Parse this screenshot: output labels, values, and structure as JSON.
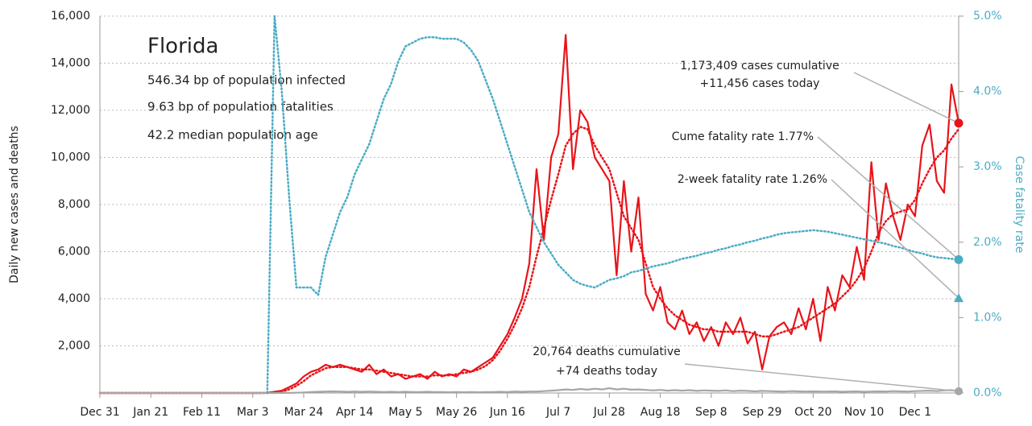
{
  "chart_data": {
    "type": "line",
    "title": "Florida",
    "info": [
      "546.34 bp of population infected",
      "9.63 bp of population fatalities",
      "42.2 median population age"
    ],
    "ylabel": "Daily new cases and deaths",
    "y2label": "Case fatality rate",
    "ylim": [
      0,
      16000
    ],
    "yticks": [
      {
        "value": 2000,
        "label": "2,000"
      },
      {
        "value": 4000,
        "label": "4,000"
      },
      {
        "value": 6000,
        "label": "6,000"
      },
      {
        "value": 8000,
        "label": "8,000"
      },
      {
        "value": 10000,
        "label": "10,000"
      },
      {
        "value": 12000,
        "label": "12,000"
      },
      {
        "value": 14000,
        "label": "14,000"
      },
      {
        "value": 16000,
        "label": "16,000"
      }
    ],
    "y2lim": [
      0,
      5
    ],
    "y2ticks": [
      {
        "value": 0,
        "label": "0.0%"
      },
      {
        "value": 1,
        "label": "1.0%"
      },
      {
        "value": 2,
        "label": "2.0%"
      },
      {
        "value": 3,
        "label": "3.0%"
      },
      {
        "value": 4,
        "label": "4.0%"
      },
      {
        "value": 5,
        "label": "5.0%"
      }
    ],
    "grid": true,
    "categories": [
      "Dec 31",
      null,
      null,
      null,
      null,
      null,
      null,
      "Jan 21",
      null,
      null,
      null,
      null,
      null,
      null,
      "Feb 11",
      null,
      null,
      null,
      null,
      null,
      null,
      "Mar 3",
      null,
      null,
      null,
      null,
      null,
      null,
      "Mar 24",
      null,
      null,
      null,
      null,
      null,
      null,
      "Apr 14",
      null,
      null,
      null,
      null,
      null,
      null,
      "May 5",
      null,
      null,
      null,
      null,
      null,
      null,
      "May 26",
      null,
      null,
      null,
      null,
      null,
      null,
      "Jun 16",
      null,
      null,
      null,
      null,
      null,
      null,
      "Jul 7",
      null,
      null,
      null,
      null,
      null,
      null,
      "Jul 28",
      null,
      null,
      null,
      null,
      null,
      null,
      "Aug 18",
      null,
      null,
      null,
      null,
      null,
      null,
      "Sep 8",
      null,
      null,
      null,
      null,
      null,
      null,
      "Sep 29",
      null,
      null,
      null,
      null,
      null,
      null,
      "Oct 20",
      null,
      null,
      null,
      null,
      null,
      null,
      "Nov 10",
      null,
      null,
      null,
      null,
      null,
      null,
      "Dec 1",
      null,
      null,
      null,
      null,
      null,
      null
    ],
    "series": [
      {
        "color": "#e8141a",
        "style": "solid",
        "values": [
          0,
          0,
          0,
          0,
          0,
          0,
          0,
          0,
          0,
          0,
          0,
          0,
          0,
          0,
          0,
          0,
          0,
          0,
          0,
          0,
          0,
          0,
          0,
          10,
          50,
          100,
          250,
          400,
          700,
          900,
          1000,
          1200,
          1100,
          1200,
          1100,
          1000,
          900,
          1200,
          800,
          1000,
          700,
          800,
          600,
          700,
          800,
          600,
          900,
          700,
          800,
          700,
          1000,
          900,
          1100,
          1300,
          1500,
          2000,
          2500,
          3200,
          4000,
          5500,
          9500,
          6500,
          10000,
          11000,
          15200,
          9500,
          12000,
          11500,
          10000,
          9500,
          9000,
          5000,
          9000,
          6000,
          8300,
          4200,
          3500,
          4500,
          3000,
          2700,
          3500,
          2500,
          3000,
          2200,
          2800,
          2000,
          3000,
          2500,
          3200,
          2100,
          2600,
          1000,
          2400,
          2800,
          3000,
          2500,
          3600,
          2700,
          4000,
          2200,
          4500,
          3500,
          5000,
          4500,
          6200,
          4800,
          9800,
          6500,
          8900,
          7500,
          6500,
          8000,
          7500,
          10500,
          11400,
          9000,
          8500,
          13100,
          11456
        ]
      },
      {
        "color": "#e8141a",
        "style": "dotted",
        "values": [
          0,
          0,
          0,
          0,
          0,
          0,
          0,
          0,
          0,
          0,
          0,
          0,
          0,
          0,
          0,
          0,
          0,
          0,
          0,
          0,
          0,
          0,
          0,
          0,
          20,
          60,
          150,
          300,
          500,
          750,
          900,
          1050,
          1100,
          1100,
          1100,
          1050,
          1000,
          1000,
          950,
          900,
          850,
          800,
          750,
          700,
          700,
          700,
          750,
          750,
          750,
          800,
          850,
          900,
          1000,
          1150,
          1400,
          1800,
          2300,
          2900,
          3600,
          4500,
          5800,
          7000,
          8200,
          9300,
          10500,
          11000,
          11300,
          11200,
          10500,
          10000,
          9500,
          8500,
          7500,
          7000,
          6500,
          5500,
          4500,
          4000,
          3600,
          3300,
          3100,
          2900,
          2800,
          2700,
          2700,
          2600,
          2600,
          2600,
          2600,
          2600,
          2500,
          2400,
          2400,
          2500,
          2600,
          2700,
          2800,
          3000,
          3200,
          3400,
          3600,
          3800,
          4100,
          4400,
          4800,
          5300,
          6000,
          6800,
          7300,
          7600,
          7700,
          7800,
          8200,
          8900,
          9500,
          10000,
          10300,
          10800,
          11200
        ]
      },
      {
        "color": "#a6a6a6",
        "style": "solid",
        "values": [
          0,
          0,
          0,
          0,
          0,
          0,
          0,
          0,
          0,
          0,
          0,
          0,
          0,
          0,
          0,
          0,
          0,
          0,
          0,
          0,
          0,
          0,
          0,
          0,
          0,
          2,
          5,
          10,
          20,
          40,
          50,
          60,
          70,
          60,
          50,
          60,
          50,
          60,
          50,
          40,
          50,
          40,
          50,
          40,
          40,
          50,
          40,
          40,
          30,
          40,
          30,
          40,
          30,
          40,
          40,
          50,
          40,
          60,
          50,
          60,
          60,
          80,
          100,
          120,
          150,
          130,
          170,
          140,
          180,
          150,
          200,
          150,
          180,
          140,
          150,
          130,
          110,
          130,
          100,
          120,
          100,
          120,
          90,
          110,
          100,
          90,
          110,
          80,
          100,
          90,
          70,
          90,
          80,
          70,
          60,
          80,
          70,
          60,
          70,
          60,
          60,
          70,
          50,
          60,
          70,
          50,
          60,
          70,
          60,
          80,
          70,
          60,
          80,
          90,
          100,
          80,
          110,
          120,
          74
        ]
      },
      {
        "color": "#4bacc6",
        "style": "dotted",
        "axis": "y2",
        "values": [
          null,
          null,
          null,
          null,
          null,
          null,
          null,
          null,
          null,
          null,
          null,
          null,
          null,
          null,
          null,
          null,
          null,
          null,
          null,
          null,
          null,
          null,
          null,
          0,
          5.0,
          4.0,
          2.6,
          1.4,
          1.4,
          1.4,
          1.3,
          1.8,
          2.1,
          2.4,
          2.6,
          2.9,
          3.1,
          3.3,
          3.6,
          3.9,
          4.1,
          4.4,
          4.6,
          4.65,
          4.7,
          4.72,
          4.72,
          4.7,
          4.7,
          4.7,
          4.65,
          4.55,
          4.4,
          4.15,
          3.9,
          3.6,
          3.3,
          3.0,
          2.7,
          2.4,
          2.2,
          2.0,
          1.85,
          1.7,
          1.6,
          1.5,
          1.45,
          1.42,
          1.4,
          1.45,
          1.5,
          1.52,
          1.55,
          1.6,
          1.62,
          1.65,
          1.68,
          1.7,
          1.72,
          1.75,
          1.78,
          1.8,
          1.82,
          1.85,
          1.87,
          1.9,
          1.92,
          1.95,
          1.97,
          2.0,
          2.02,
          2.05,
          2.07,
          2.1,
          2.12,
          2.13,
          2.14,
          2.15,
          2.16,
          2.15,
          2.14,
          2.12,
          2.1,
          2.08,
          2.06,
          2.04,
          2.02,
          2.0,
          1.98,
          1.95,
          1.93,
          1.9,
          1.87,
          1.85,
          1.82,
          1.8,
          1.79,
          1.78,
          1.77
        ]
      }
    ],
    "two_week_fatality_rate": 1.26,
    "annotations": [
      "1,173,409 cases cumulative",
      "+11,456 cases today",
      "Cume fatality rate 1.77%",
      "2-week fatality rate 1.26%",
      "20,764 deaths cumulative",
      "+74 deaths today"
    ]
  }
}
